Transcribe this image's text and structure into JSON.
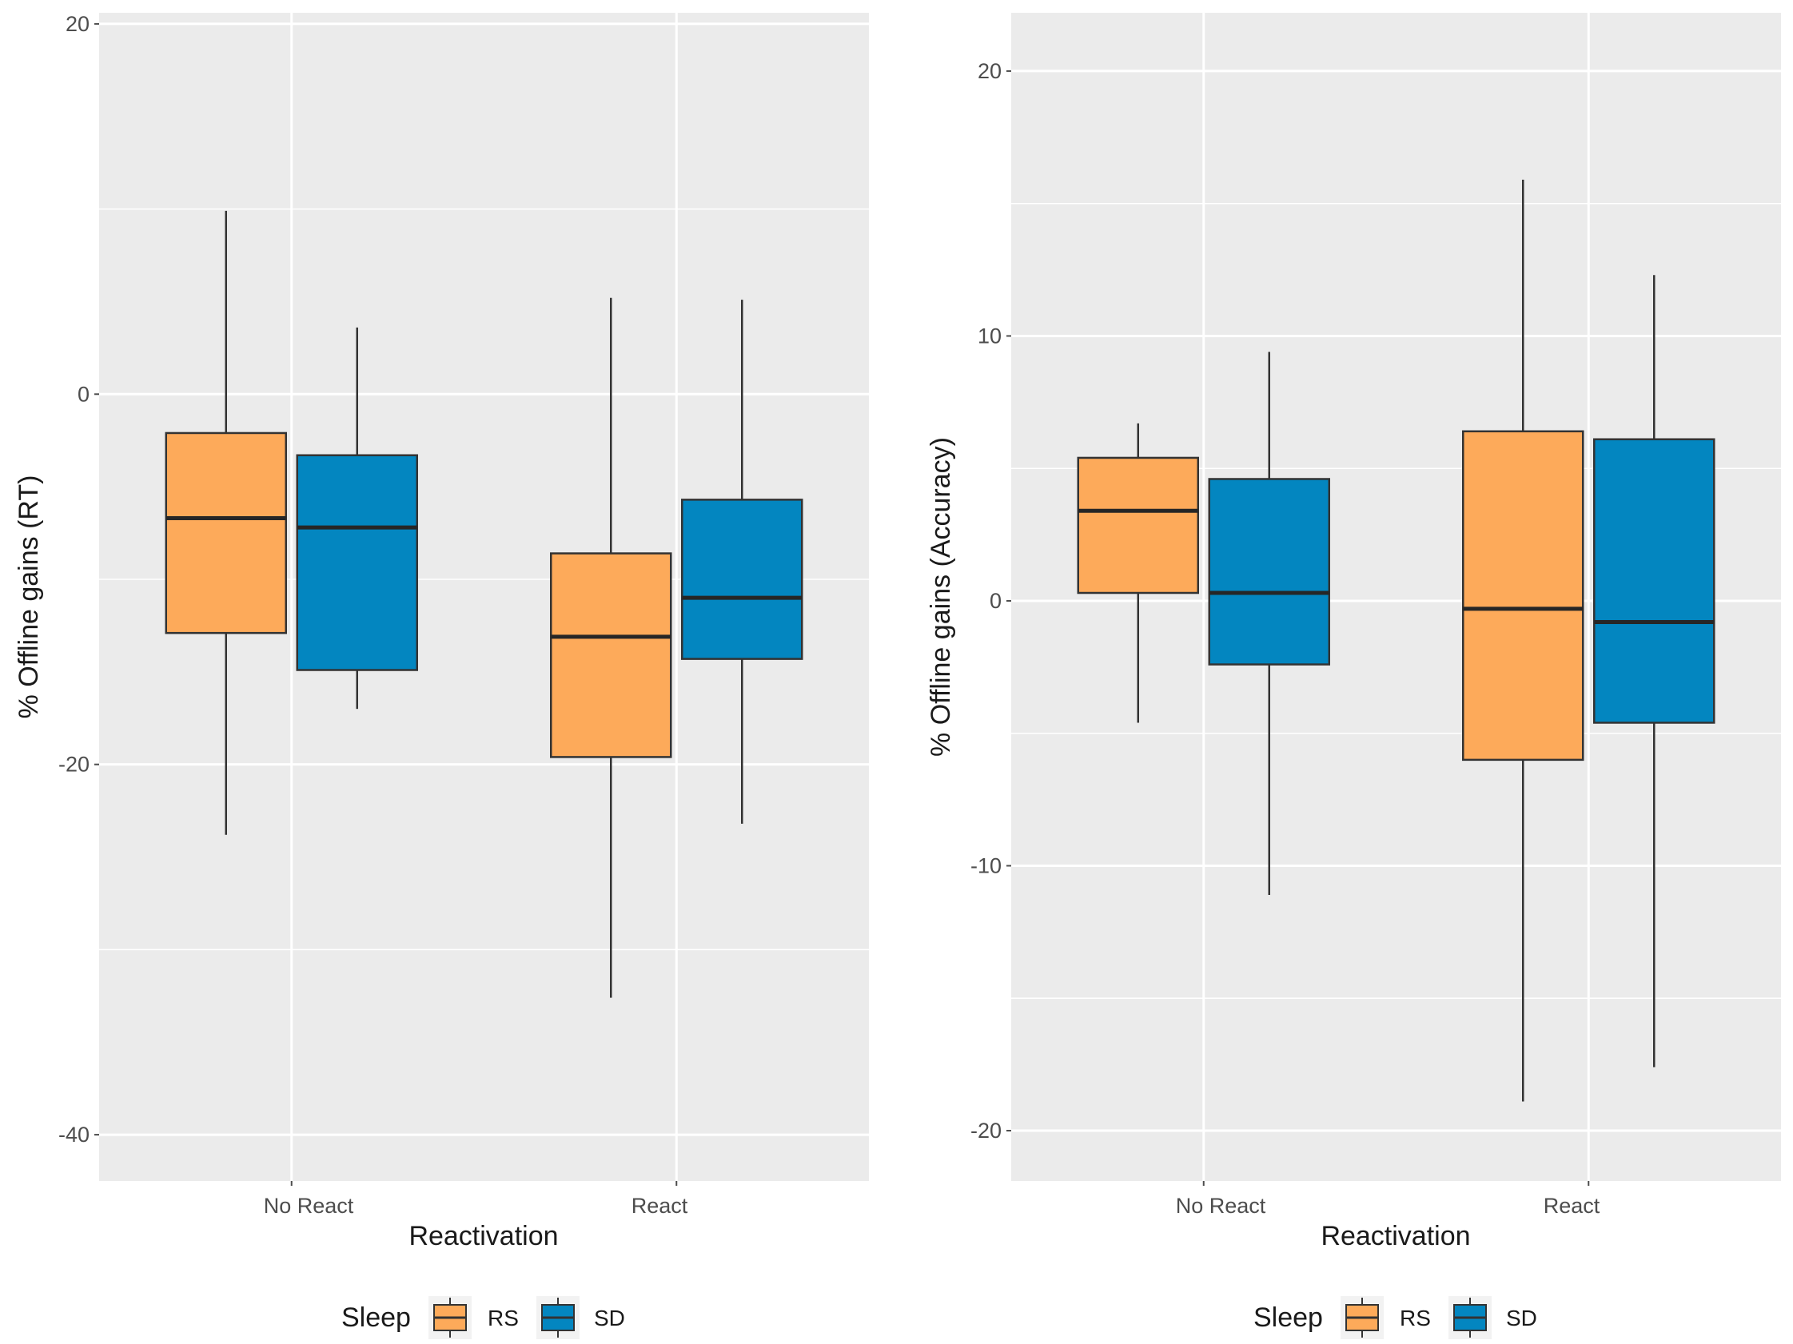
{
  "chart_data": [
    {
      "type": "boxplot",
      "title": "",
      "xlabel": "Reactivation",
      "ylabel": "% Offline gains (RT)",
      "categories": [
        "No React",
        "React"
      ],
      "ylim": [
        -42.5,
        20.6
      ],
      "yticks": [
        -40,
        -20,
        0,
        20
      ],
      "ytick_labels": [
        "-40",
        "-20",
        "0",
        "20"
      ],
      "grid": true,
      "legend": {
        "title": "Sleep",
        "position": "bottom",
        "entries": [
          "RS",
          "SD"
        ]
      },
      "series": [
        {
          "name": "RS",
          "color": "#FDAA5A",
          "boxes": [
            {
              "category": "No React",
              "min": -23.8,
              "q1": -12.9,
              "median": -6.7,
              "q3": -2.1,
              "max": 9.9
            },
            {
              "category": "React",
              "min": -32.6,
              "q1": -19.6,
              "median": -13.1,
              "q3": -8.6,
              "max": 5.2
            }
          ]
        },
        {
          "name": "SD",
          "color": "#0386C0",
          "boxes": [
            {
              "category": "No React",
              "min": -17.0,
              "q1": -14.9,
              "median": -7.2,
              "q3": -3.3,
              "max": 3.6
            },
            {
              "category": "React",
              "min": -23.2,
              "q1": -14.3,
              "median": -11.0,
              "q3": -5.7,
              "max": 5.1
            }
          ]
        }
      ]
    },
    {
      "type": "boxplot",
      "title": "",
      "xlabel": "Reactivation",
      "ylabel": "% Offline gains (Accuracy)",
      "categories": [
        "No React",
        "React"
      ],
      "ylim": [
        -21.9,
        22.2
      ],
      "yticks": [
        -20,
        -10,
        0,
        10,
        20
      ],
      "ytick_labels": [
        "-20",
        "-10",
        "0",
        "10",
        "20"
      ],
      "grid": true,
      "legend": {
        "title": "Sleep",
        "position": "bottom",
        "entries": [
          "RS",
          "SD"
        ]
      },
      "series": [
        {
          "name": "RS",
          "color": "#FDAA5A",
          "boxes": [
            {
              "category": "No React",
              "min": -4.6,
              "q1": 0.3,
              "median": 3.4,
              "q3": 5.4,
              "max": 6.7
            },
            {
              "category": "React",
              "min": -18.9,
              "q1": -6.0,
              "median": -0.3,
              "q3": 6.4,
              "max": 15.9
            }
          ]
        },
        {
          "name": "SD",
          "color": "#0386C0",
          "boxes": [
            {
              "category": "No React",
              "min": -11.1,
              "q1": -2.4,
              "median": 0.3,
              "q3": 4.6,
              "max": 9.4
            },
            {
              "category": "React",
              "min": -17.6,
              "q1": -4.6,
              "median": -0.8,
              "q3": 6.1,
              "max": 12.3
            }
          ]
        }
      ]
    }
  ]
}
